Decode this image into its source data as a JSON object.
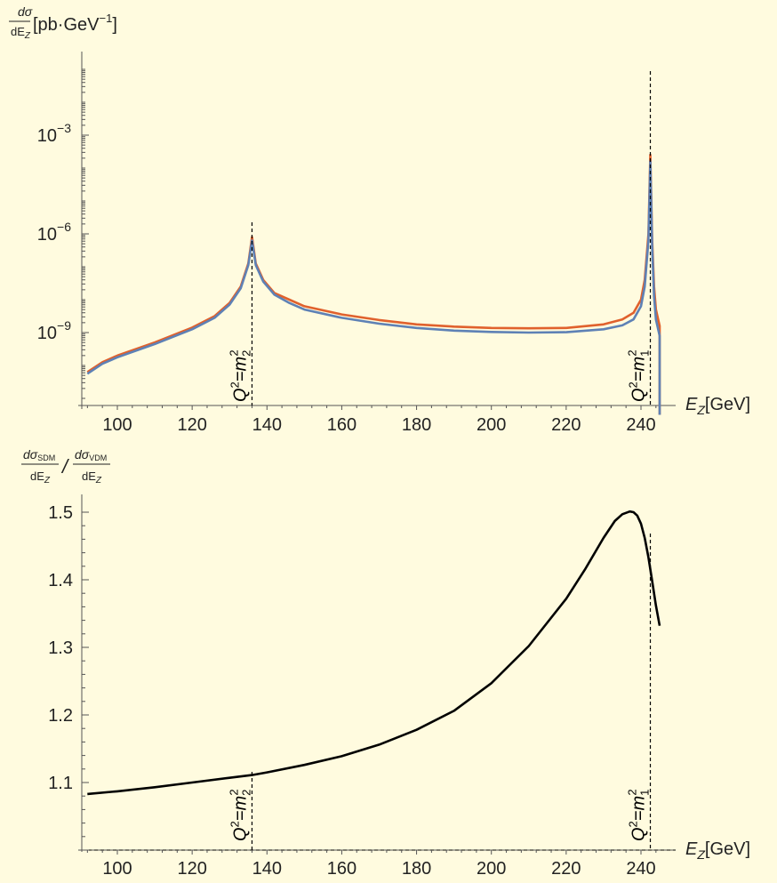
{
  "chart_data": [
    {
      "type": "line",
      "panel": "top",
      "yscale": "log",
      "ylabel": {
        "frac_top": "dσ",
        "frac_bottom": "dE",
        "frac_bottom_sub": "Z",
        "unit": "[pb·GeV",
        "unit_sup": "−1",
        "unit_close": "]"
      },
      "xlabel": {
        "main": "E",
        "sub": "Z",
        "unit": "[GeV]"
      },
      "xlim": [
        92,
        246
      ],
      "ylim_log10": [
        -11.5,
        -0.9
      ],
      "xticks": [
        100,
        120,
        140,
        160,
        180,
        200,
        220,
        240
      ],
      "yticks": [
        {
          "log10": -3,
          "base": "10",
          "exp": "−3"
        },
        {
          "log10": -6,
          "base": "10",
          "exp": "−6"
        },
        {
          "log10": -9,
          "base": "10",
          "exp": "−9"
        }
      ],
      "markers": [
        {
          "x": 136,
          "label": "Q",
          "sup": "2",
          "eq": "=m",
          "sub": "2",
          "sup2": "2"
        },
        {
          "x": 242.5,
          "label": "Q",
          "sup": "2",
          "eq": "=m",
          "sub": "1",
          "sup2": "2"
        }
      ],
      "series": [
        {
          "color": "#E0612D",
          "x": [
            92,
            96,
            100,
            110,
            120,
            126,
            130,
            133,
            135,
            136,
            137,
            139,
            142,
            146,
            150,
            160,
            170,
            180,
            190,
            200,
            210,
            220,
            230,
            235,
            238,
            240,
            241,
            242,
            242.5,
            243,
            243.5,
            244,
            245,
            245
          ],
          "y_log10": [
            -10.2,
            -9.9,
            -9.7,
            -9.3,
            -8.85,
            -8.5,
            -8.1,
            -7.6,
            -6.9,
            -6.1,
            -6.9,
            -7.4,
            -7.8,
            -8.0,
            -8.2,
            -8.45,
            -8.62,
            -8.75,
            -8.82,
            -8.86,
            -8.87,
            -8.86,
            -8.75,
            -8.6,
            -8.4,
            -8.0,
            -7.4,
            -6.0,
            -3.6,
            -6.2,
            -7.6,
            -8.3,
            -8.8,
            -11.5
          ]
        },
        {
          "color": "#5E81B5",
          "x": [
            92,
            96,
            100,
            110,
            120,
            126,
            130,
            133,
            135,
            136,
            137,
            139,
            142,
            146,
            150,
            160,
            170,
            180,
            190,
            200,
            210,
            220,
            230,
            235,
            238,
            240,
            241,
            242,
            242.5,
            243,
            243.5,
            244,
            245,
            245
          ],
          "y_log10": [
            -10.25,
            -9.95,
            -9.75,
            -9.35,
            -8.9,
            -8.55,
            -8.15,
            -7.65,
            -6.95,
            -6.2,
            -6.95,
            -7.45,
            -7.85,
            -8.1,
            -8.3,
            -8.55,
            -8.73,
            -8.86,
            -8.94,
            -8.98,
            -9.0,
            -8.99,
            -8.9,
            -8.78,
            -8.6,
            -8.2,
            -7.6,
            -6.2,
            -3.8,
            -6.4,
            -7.9,
            -8.6,
            -9.1,
            -11.5
          ]
        }
      ]
    },
    {
      "type": "line",
      "panel": "bottom",
      "ylabel": {
        "num1": "dσ",
        "num1_sub": "SDM",
        "den1": "dE",
        "den1_sub": "Z",
        "slash": "/",
        "num2": "dσ",
        "num2_sub": "VDM",
        "den2": "dE",
        "den2_sub": "Z"
      },
      "xlabel": {
        "main": "E",
        "sub": "Z",
        "unit": "[GeV]"
      },
      "xlim": [
        92,
        246
      ],
      "ylim": [
        1.0,
        1.51
      ],
      "xticks": [
        100,
        120,
        140,
        160,
        180,
        200,
        220,
        240
      ],
      "yticks": [
        "1.1",
        "1.2",
        "1.3",
        "1.4",
        "1.5"
      ],
      "markers": [
        {
          "x": 136,
          "label": "Q",
          "sup": "2",
          "eq": "=m",
          "sub": "2",
          "sup2": "2"
        },
        {
          "x": 242.5,
          "label": "Q",
          "sup": "2",
          "eq": "=m",
          "sub": "1",
          "sup2": "2"
        }
      ],
      "series": [
        {
          "color": "#000000",
          "x": [
            92,
            100,
            110,
            120,
            130,
            136,
            140,
            150,
            160,
            170,
            180,
            190,
            200,
            210,
            220,
            225,
            230,
            233,
            235,
            237,
            238,
            239,
            240,
            241,
            242,
            243,
            244,
            245
          ],
          "y": [
            1.083,
            1.087,
            1.093,
            1.1,
            1.107,
            1.111,
            1.115,
            1.126,
            1.139,
            1.156,
            1.178,
            1.206,
            1.247,
            1.302,
            1.372,
            1.415,
            1.462,
            1.487,
            1.497,
            1.501,
            1.5,
            1.495,
            1.483,
            1.462,
            1.433,
            1.398,
            1.362,
            1.332
          ]
        }
      ]
    }
  ]
}
